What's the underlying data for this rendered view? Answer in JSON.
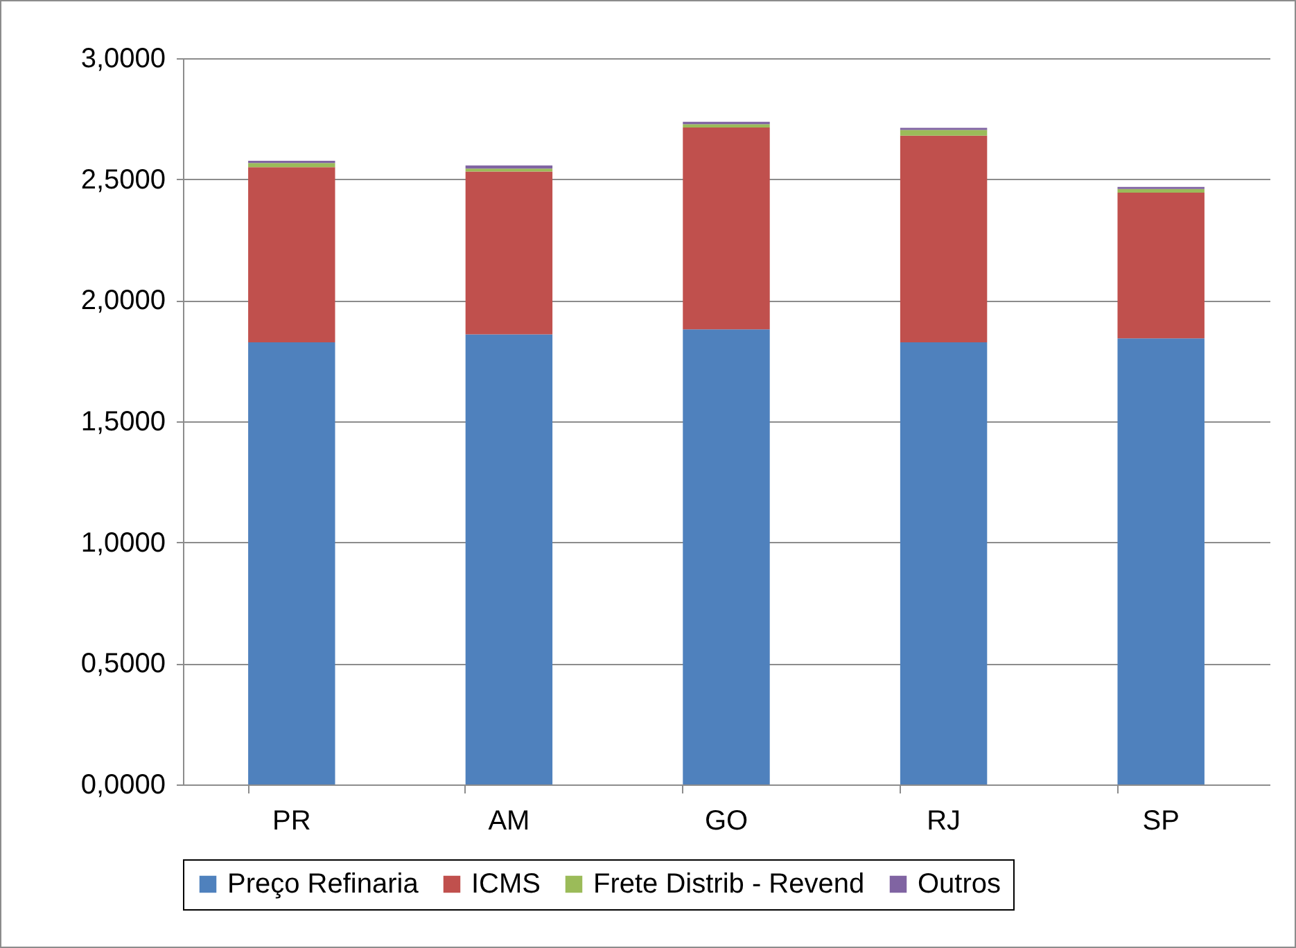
{
  "chart_data": {
    "type": "bar",
    "stacked": true,
    "categories": [
      "PR",
      "AM",
      "GO",
      "RJ",
      "SP"
    ],
    "series": [
      {
        "name": "Preço Refinaria",
        "color": "#4f81bd",
        "values": [
          1.826,
          1.859,
          1.88,
          1.826,
          1.843
        ]
      },
      {
        "name": "ICMS",
        "color": "#c0504d",
        "values": [
          0.724,
          0.673,
          0.834,
          0.854,
          0.602
        ]
      },
      {
        "name": "Frete Distrib - Revend",
        "color": "#9bbb59",
        "values": [
          0.017,
          0.012,
          0.013,
          0.024,
          0.015
        ]
      },
      {
        "name": "Outros",
        "color": "#8064a2",
        "values": [
          0.009,
          0.013,
          0.01,
          0.008,
          0.008
        ]
      }
    ],
    "ylim": [
      0,
      3
    ],
    "yticks": [
      {
        "value": 0,
        "label": "0,0000"
      },
      {
        "value": 0.5,
        "label": "0,5000"
      },
      {
        "value": 1,
        "label": "1,0000"
      },
      {
        "value": 1.5,
        "label": "1,5000"
      },
      {
        "value": 2,
        "label": "2,0000"
      },
      {
        "value": 2.5,
        "label": "2,5000"
      },
      {
        "value": 3,
        "label": "3,0000"
      }
    ],
    "grid": "y",
    "legend": "bottom"
  }
}
